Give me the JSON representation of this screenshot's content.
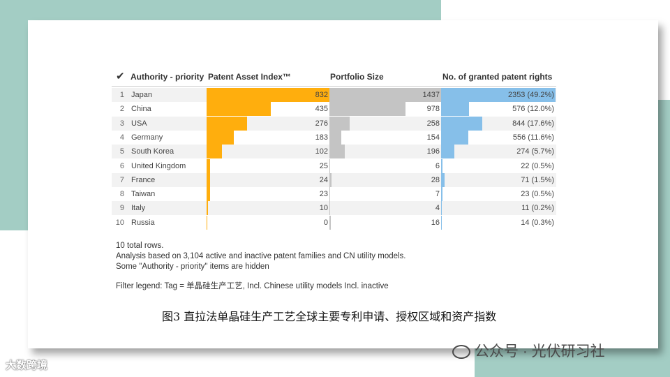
{
  "chart_data": {
    "type": "table",
    "columns": [
      "Authority - priority",
      "Patent Asset Index™",
      "Portfolio Size",
      "No. of granted patent rights"
    ],
    "categories": [
      "Japan",
      "China",
      "USA",
      "Germany",
      "South Korea",
      "United Kingdom",
      "France",
      "Taiwan",
      "Italy",
      "Russia"
    ],
    "series": [
      {
        "name": "Patent Asset Index™",
        "values": [
          832,
          435,
          276,
          183,
          102,
          25,
          24,
          23,
          10,
          0
        ]
      },
      {
        "name": "Portfolio Size",
        "values": [
          1437,
          978,
          258,
          154,
          196,
          6,
          28,
          7,
          4,
          16
        ]
      },
      {
        "name": "No. of granted patent rights",
        "values": [
          2353,
          576,
          844,
          556,
          274,
          22,
          71,
          23,
          11,
          14
        ],
        "labels": [
          "2353 (49.2%)",
          "576 (12.0%)",
          "844 (17.6%)",
          "556 (11.6%)",
          "274 (5.7%)",
          "22 (0.5%)",
          "71 (1.5%)",
          "23 (0.5%)",
          "11 (0.2%)",
          "14 (0.3%)"
        ]
      }
    ],
    "ranks": [
      "1",
      "2",
      "3",
      "4",
      "5",
      "6",
      "7",
      "8",
      "9",
      "10"
    ],
    "colors": {
      "pai": "#ffae0d",
      "ps": "#c4c4c4",
      "gp": "#86bfe9"
    }
  },
  "notes": [
    "10 total rows.",
    "Analysis based on 3,104 active and inactive patent families and CN utility models.",
    "Some \"Authority - priority\" items are hidden"
  ],
  "filter_legend": "Filter legend: Tag = 单晶硅生产工艺, Incl. Chinese utility models Incl. inactive",
  "caption": "图3 直拉法单晶硅生产工艺全球主要专利申请、授权区域和资产指数",
  "watermark_left": "大数跨境",
  "watermark_right": "公众号 · 光伏研习社"
}
